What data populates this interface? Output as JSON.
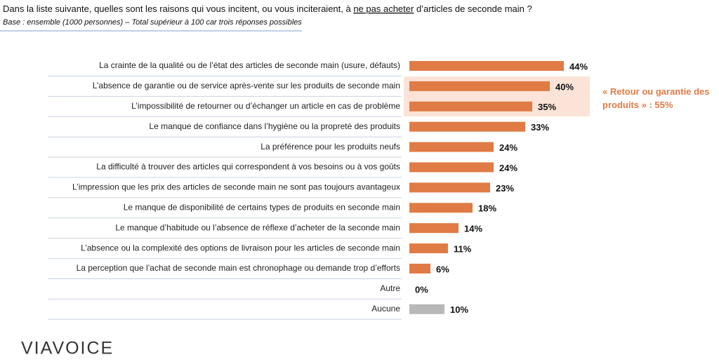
{
  "chart_data": {
    "type": "bar",
    "title": [
      "Dans la liste suivante, quelles sont les raisons qui vous incitent, ou vous inciteraient, à ",
      "ne pas acheter",
      " d’articles de seconde main ?"
    ],
    "subtitle": "Base : ensemble (1000 personnes) – Total supérieur à 100 car trois réponses possibles",
    "categories": [
      "La crainte de la qualité ou de l’état des articles de seconde main (usure, défauts)",
      "L’absence de garantie ou de service après-vente sur les produits de seconde main",
      "L’impossibilité de retourner ou d’échanger un article en cas de problème",
      "Le manque de confiance dans l’hygiène ou la propreté des produits",
      "La préférence pour les produits neufs",
      "La difficulté à trouver des articles qui correspondent à vos besoins ou à vos goûts",
      "L’impression que les prix des articles de seconde main ne sont pas toujours avantageux",
      "Le manque de disponibilité de certains types de produits en seconde main",
      "Le manque d’habitude ou l’absence de réflexe d’acheter de la seconde main",
      "L’absence ou la complexité des options de livraison pour les articles de seconde main",
      "La perception que l’achat de seconde main est chronophage ou demande trop d’efforts",
      "Autre",
      "Aucune"
    ],
    "values": [
      44,
      40,
      35,
      33,
      24,
      24,
      23,
      18,
      14,
      11,
      6,
      0,
      10
    ],
    "value_labels": [
      "44%",
      "40%",
      "35%",
      "33%",
      "24%",
      "24%",
      "23%",
      "18%",
      "14%",
      "11%",
      "6%",
      "0%",
      "10%"
    ],
    "colors": [
      "#e07b45",
      "#e07b45",
      "#e07b45",
      "#e07b45",
      "#e07b45",
      "#e07b45",
      "#e07b45",
      "#e07b45",
      "#e07b45",
      "#e07b45",
      "#e07b45",
      "#e07b45",
      "#b8b8b8"
    ],
    "annotation": "« Retour ou garantie des produits » : 55%",
    "brand": "VIAVOICE"
  }
}
